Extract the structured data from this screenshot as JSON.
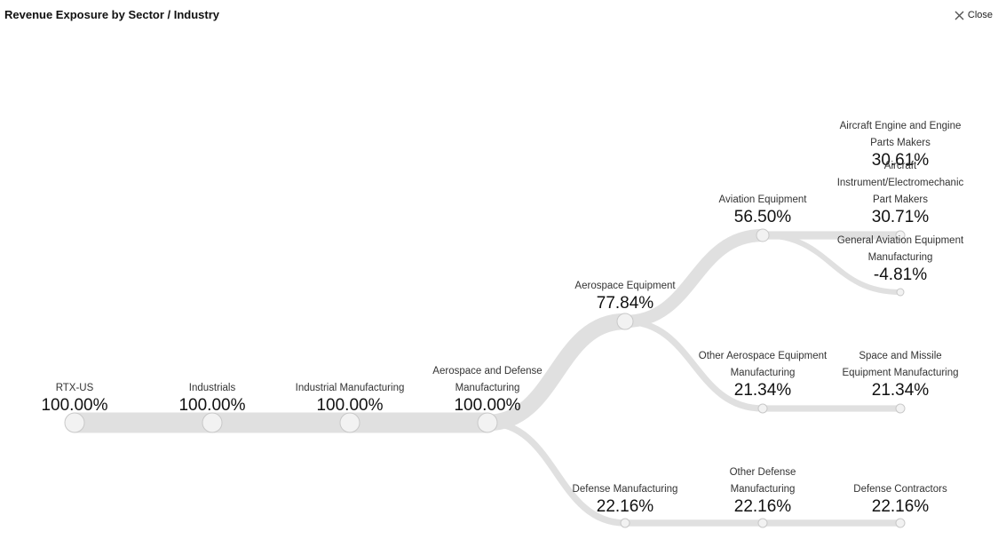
{
  "header": {
    "title": "Revenue Exposure by Sector / Industry",
    "close_label": "Close"
  },
  "colors": {
    "link": "#e0e0e0",
    "node_fill": "#f2f2f2",
    "node_stroke": "#c8c8c8",
    "label": "#333333",
    "value": "#111111"
  },
  "icons": {
    "close": "close-icon"
  },
  "chart_data": {
    "type": "tree",
    "title": "Revenue Exposure by Sector / Industry",
    "value_unit": "%",
    "nodes": [
      {
        "id": "rtx",
        "name": "RTX-US",
        "value": "100.00%",
        "depth": 0
      },
      {
        "id": "ind",
        "name": "Industrials",
        "value": "100.00%",
        "depth": 1,
        "parent": "rtx"
      },
      {
        "id": "im",
        "name": "Industrial Manufacturing",
        "value": "100.00%",
        "depth": 2,
        "parent": "ind"
      },
      {
        "id": "ad",
        "name": "Aerospace and Defense Manufacturing",
        "value": "100.00%",
        "depth": 3,
        "parent": "im"
      },
      {
        "id": "ae",
        "name": "Aerospace Equipment",
        "value": "77.84%",
        "depth": 4,
        "parent": "ad"
      },
      {
        "id": "dm",
        "name": "Defense Manufacturing",
        "value": "22.16%",
        "depth": 4,
        "parent": "ad"
      },
      {
        "id": "av",
        "name": "Aviation Equipment",
        "value": "56.50%",
        "depth": 5,
        "parent": "ae"
      },
      {
        "id": "oa",
        "name": "Other Aerospace Equipment Manufacturing",
        "value": "21.34%",
        "depth": 5,
        "parent": "ae"
      },
      {
        "id": "od",
        "name": "Other Defense Manufacturing",
        "value": "22.16%",
        "depth": 5,
        "parent": "dm"
      },
      {
        "id": "aep",
        "name": "Aircraft Engine and Engine Parts Makers",
        "value": "30.61%",
        "depth": 6,
        "parent": "av"
      },
      {
        "id": "aiep",
        "name": "Aircraft Instrument/Electromechanic Part Makers",
        "value": "30.71%",
        "depth": 6,
        "parent": "av"
      },
      {
        "id": "gae",
        "name": "General Aviation Equipment Manufacturing",
        "value": "-4.81%",
        "depth": 6,
        "parent": "av"
      },
      {
        "id": "sm",
        "name": "Space and Missile Equipment Manufacturing",
        "value": "21.34%",
        "depth": 6,
        "parent": "oa"
      },
      {
        "id": "dc",
        "name": "Defense Contractors",
        "value": "22.16%",
        "depth": 6,
        "parent": "od"
      }
    ]
  }
}
